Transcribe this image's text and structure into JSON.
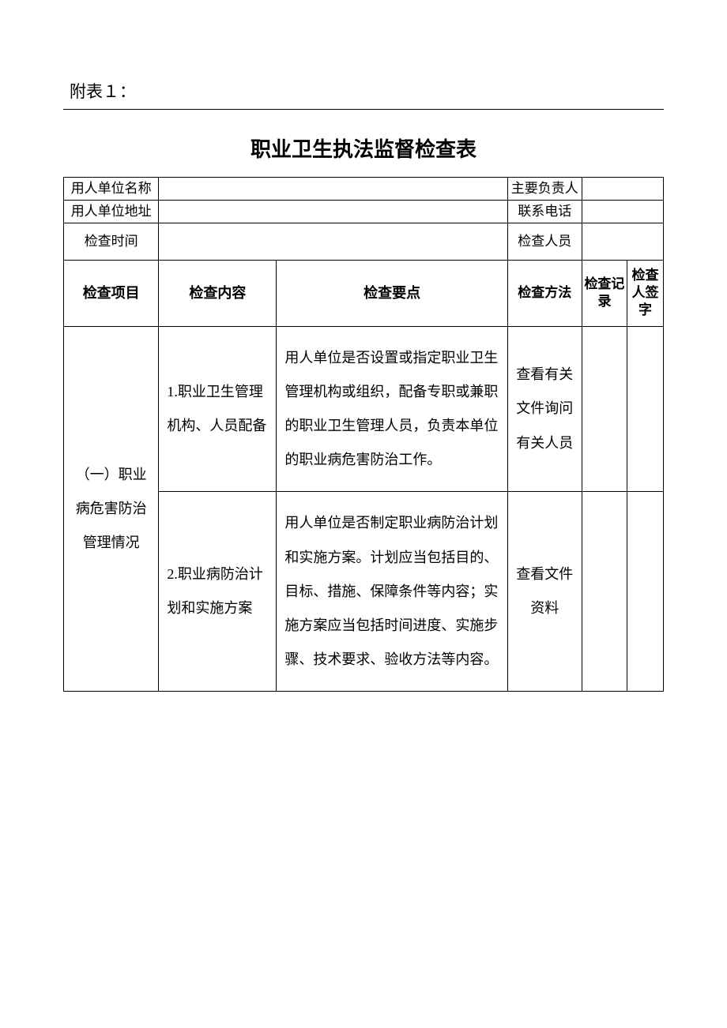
{
  "attachment_label": "附表１：",
  "title": "职业卫生执法监督检查表",
  "info_rows": {
    "r1c1": "用人单位名称",
    "r1c3": "主要负责人",
    "r2c1": "用人单位地址",
    "r2c3": "联系电话",
    "r3c1": "检查时间",
    "r3c3": "检查人员"
  },
  "headers": {
    "project": "检查项目",
    "content": "检查内容",
    "point": "检查要点",
    "method": "检查方法",
    "record": "检查记录",
    "sign": "检查人签字"
  },
  "body": {
    "project": "（一）职业病危害防治管理情况",
    "row1": {
      "content": "1.职业卫生管理机构、人员配备",
      "point": "用人单位是否设置或指定职业卫生管理机构或组织，配备专职或兼职的职业卫生管理人员，负责本单位的职业病危害防治工作。",
      "method": "查看有关文件询问有关人员"
    },
    "row2": {
      "content": "2.职业病防治计划和实施方案",
      "point": "用人单位是否制定职业病防治计划和实施方案。计划应当包括目的、目标、措施、保障条件等内容；实施方案应当包括时间进度、实施步骤、技术要求、验收方法等内容。",
      "method": "查看文件资料"
    }
  },
  "colors": {
    "text": "#000000",
    "background": "#ffffff",
    "border": "#000000"
  }
}
